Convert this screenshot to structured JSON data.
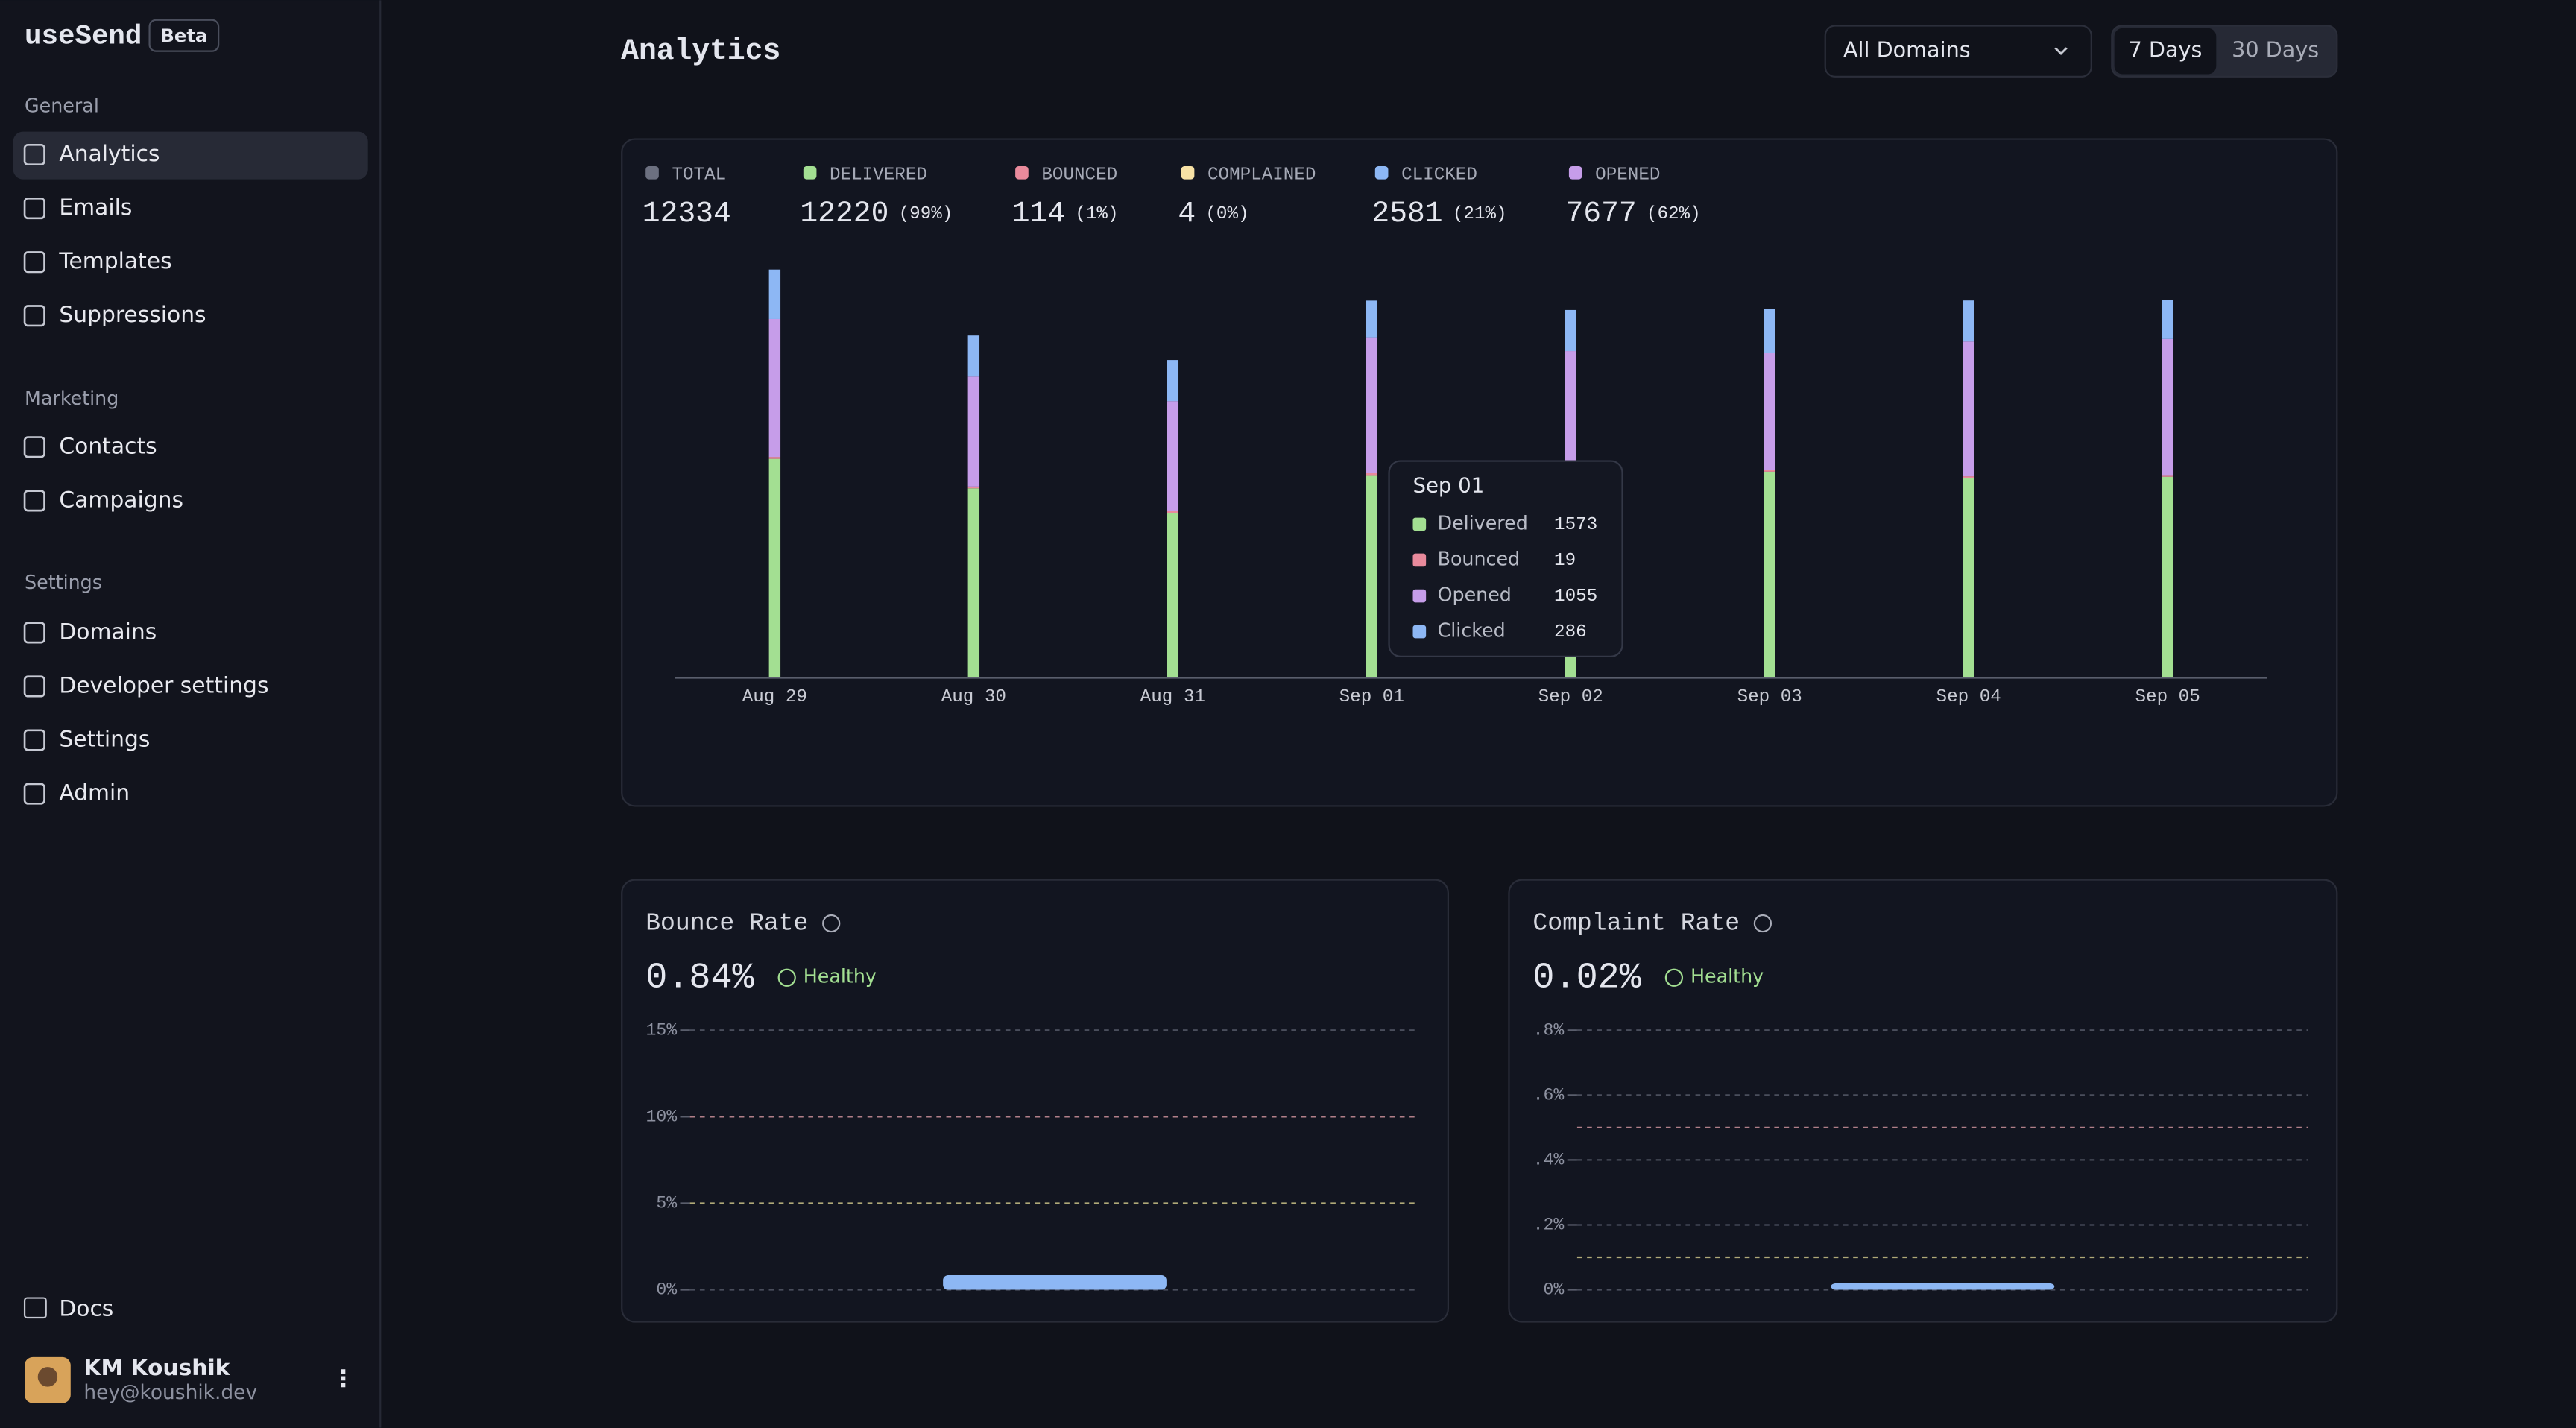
{
  "sidebar": {
    "brand": "useSend",
    "badge": "Beta",
    "sections": [
      {
        "title": "General",
        "items": [
          "Analytics",
          "Emails",
          "Templates",
          "Suppressions"
        ]
      },
      {
        "title": "Marketing",
        "items": [
          "Contacts",
          "Campaigns"
        ]
      },
      {
        "title": "Settings",
        "items": [
          "Domains",
          "Developer settings",
          "Settings",
          "Admin"
        ]
      }
    ],
    "docs": "Docs",
    "user": {
      "name": "KM Koushik",
      "email": "hey@koushik.dev"
    }
  },
  "header": {
    "title": "Analytics",
    "domain_select": "All Domains",
    "ranges": [
      "7 Days",
      "30 Days"
    ]
  },
  "summary": [
    {
      "label": "TOTAL",
      "value": 12334,
      "color": "#6c7080"
    },
    {
      "label": "DELIVERED",
      "value": 12220,
      "percent": "(99%)",
      "color": "#a3df92"
    },
    {
      "label": "BOUNCED",
      "value": 114,
      "percent": "(1%)",
      "color": "#e98a9c"
    },
    {
      "label": "COMPLAINED",
      "value": 4,
      "percent": "(0%)",
      "color": "#f7e1a5"
    },
    {
      "label": "CLICKED",
      "value": 2581,
      "percent": "(21%)",
      "color": "#8db7f4"
    },
    {
      "label": "OPENED",
      "value": 7677,
      "percent": "(62%)",
      "color": "#c69de9"
    }
  ],
  "chart_data": [
    {
      "type": "stacked_bar",
      "categories": [
        "Aug 29",
        "Aug 30",
        "Aug 31",
        "Sep 01",
        "Sep 02",
        "Sep 03",
        "Sep 04",
        "Sep 05"
      ],
      "series": [
        {
          "name": "Delivered",
          "color": "#a3df92",
          "values": [
            1700,
            1470,
            1280,
            1573,
            1590,
            1600,
            1550,
            1560
          ]
        },
        {
          "name": "Bounced",
          "color": "#e98a9c",
          "values": [
            15,
            14,
            13,
            19,
            15,
            15,
            14,
            14
          ]
        },
        {
          "name": "Opened",
          "color": "#c69de9",
          "values": [
            1075,
            857,
            857,
            1055,
            935,
            910,
            1050,
            1060
          ]
        },
        {
          "name": "Clicked",
          "color": "#8db7f4",
          "values": [
            385,
            320,
            320,
            286,
            320,
            345,
            320,
            305
          ]
        }
      ],
      "ylim": [
        0,
        3200
      ]
    },
    {
      "type": "bar",
      "title": "Bounce Rate",
      "value_text": "0.84%",
      "status": "Healthy",
      "categories": [
        null
      ],
      "values": [
        0.84
      ],
      "color": "#8db7f4",
      "ylim": [
        0,
        15
      ],
      "yticks": [
        {
          "value": 0,
          "label": "0%"
        },
        {
          "value": 5,
          "label": "5%"
        },
        {
          "value": 10,
          "label": "10%"
        },
        {
          "value": 15,
          "label": "15%"
        }
      ],
      "reference_lines": [
        {
          "value": 5,
          "color": "#d8cf8f"
        },
        {
          "value": 10,
          "color": "#d99aa4"
        }
      ]
    },
    {
      "type": "bar",
      "title": "Complaint Rate",
      "value_text": "0.02%",
      "status": "Healthy",
      "categories": [
        null
      ],
      "values": [
        0.02
      ],
      "color": "#8db7f4",
      "ylim": [
        0,
        0.8
      ],
      "yticks": [
        {
          "value": 0,
          "label": "0%"
        },
        {
          "value": 0.2,
          "label": ".2%"
        },
        {
          "value": 0.4,
          "label": ".4%"
        },
        {
          "value": 0.6,
          "label": ".6%"
        },
        {
          "value": 0.8,
          "label": ".8%"
        }
      ],
      "reference_lines": [
        {
          "value": 0.1,
          "color": "#d8cf8f"
        },
        {
          "value": 0.5,
          "color": "#d99aa4"
        }
      ]
    }
  ]
}
